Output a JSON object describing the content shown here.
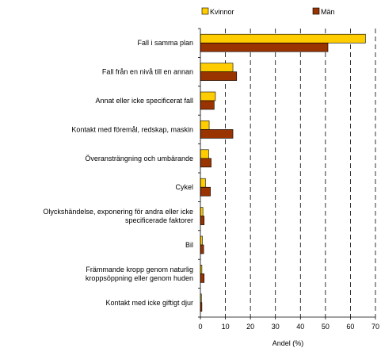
{
  "chart_data": {
    "type": "bar",
    "orientation": "horizontal",
    "categories": [
      [
        "Fall i samma plan"
      ],
      [
        "Fall från en nivå till en annan"
      ],
      [
        "Annat eller icke specificerat fall"
      ],
      [
        "Kontakt med föremål, redskap, maskin"
      ],
      [
        "Överansträngning och umbärande"
      ],
      [
        "Cykel"
      ],
      [
        "Olyckshändelse, exponering för andra eller icke",
        "specificerade faktorer"
      ],
      [
        "Bil"
      ],
      [
        "Främmande kropp genom naturlig",
        "kroppsöppning eller genom huden"
      ],
      [
        "Kontakt med icke giftigt djur"
      ]
    ],
    "series": [
      {
        "name": "Kvinnor",
        "color": "#FFCC00",
        "values": [
          66.0,
          13.0,
          6.0,
          3.5,
          3.3,
          2.0,
          1.0,
          0.8,
          0.6,
          0.4
        ]
      },
      {
        "name": "Män",
        "color": "#993300",
        "values": [
          51.0,
          14.5,
          5.5,
          13.0,
          4.3,
          4.0,
          1.5,
          1.3,
          1.5,
          0.6
        ]
      }
    ],
    "xlabel": "Andel (%)",
    "xlim": [
      0,
      70
    ],
    "xticks": [
      0,
      10,
      20,
      30,
      40,
      50,
      60,
      70
    ],
    "grid": "vertical dashed",
    "legend": "top"
  }
}
